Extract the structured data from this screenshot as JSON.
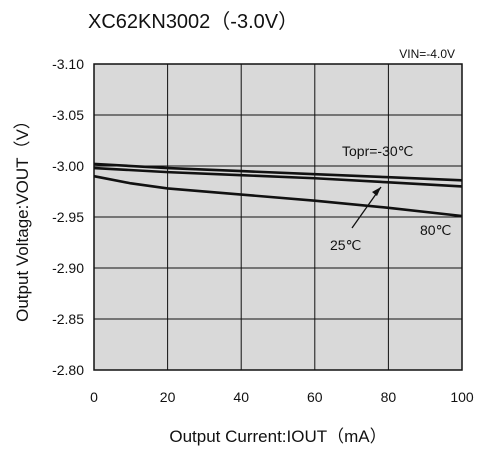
{
  "chart_data": {
    "type": "line",
    "title": "XC62KN3002（-3.0V）",
    "condition_label": "VIN=-4.0V",
    "xlabel": "Output Current:IOUT（mA）",
    "ylabel": "Output Voltage:VOUT（V）",
    "xlim": [
      0,
      100
    ],
    "ylim": [
      -3.1,
      -2.8
    ],
    "x_ticks": [
      "0",
      "20",
      "40",
      "60",
      "80",
      "100"
    ],
    "y_ticks": [
      "-3.10",
      "-3.05",
      "-3.00",
      "-2.95",
      "-2.90",
      "-2.85",
      "-2.80"
    ],
    "grid": true,
    "series": [
      {
        "name": "Topr=-30℃",
        "x": [
          0,
          20,
          40,
          60,
          80,
          100
        ],
        "y": [
          -3.002,
          -2.998,
          -2.995,
          -2.992,
          -2.989,
          -2.986
        ]
      },
      {
        "name": "25℃",
        "x": [
          0,
          20,
          40,
          60,
          80,
          100
        ],
        "y": [
          -2.998,
          -2.994,
          -2.991,
          -2.988,
          -2.984,
          -2.98
        ]
      },
      {
        "name": "80℃",
        "x": [
          0,
          10,
          20,
          40,
          60,
          80,
          100
        ],
        "y": [
          -2.99,
          -2.983,
          -2.978,
          -2.972,
          -2.966,
          -2.959,
          -2.951
        ]
      }
    ],
    "annotations": [
      "Topr=-30℃",
      "25℃",
      "80℃"
    ]
  }
}
